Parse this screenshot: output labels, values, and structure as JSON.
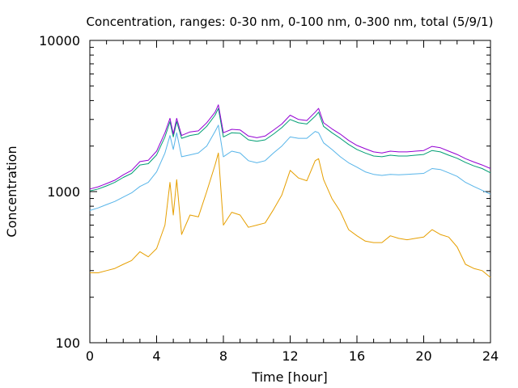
{
  "chart_data": {
    "type": "line",
    "title": "Concentration, ranges: 0-30 nm, 0-100 nm, 0-300 nm, total (5/9/1)",
    "xlabel": "Time [hour]",
    "ylabel": "Concentration",
    "xlim": [
      0,
      24
    ],
    "ylim": [
      100,
      10000
    ],
    "yscale": "log",
    "grid": false,
    "x_ticks": [
      "0",
      "4",
      "8",
      "12",
      "16",
      "20",
      "24"
    ],
    "x_tick_values": [
      0,
      4,
      8,
      12,
      16,
      20,
      24
    ],
    "y_ticks": [
      "100",
      "1000",
      "10000"
    ],
    "y_tick_values": [
      100,
      1000,
      10000
    ],
    "x": [
      0,
      0.5,
      1,
      1.5,
      2,
      2.5,
      3,
      3.5,
      4,
      4.5,
      4.8,
      5,
      5.2,
      5.5,
      6,
      6.5,
      7,
      7.5,
      7.7,
      8,
      8.5,
      9,
      9.5,
      10,
      10.5,
      11,
      11.5,
      12,
      12.5,
      13,
      13.5,
      13.7,
      14,
      14.5,
      15,
      15.5,
      16,
      16.5,
      17,
      17.5,
      18,
      18.5,
      19,
      19.5,
      20,
      20.5,
      21,
      21.5,
      22,
      22.5,
      23,
      23.5,
      24
    ],
    "series": [
      {
        "color": "#e69f00",
        "values": [
          290,
          290,
          300,
          310,
          330,
          350,
          400,
          370,
          420,
          600,
          1150,
          700,
          1200,
          520,
          700,
          680,
          1000,
          1500,
          1800,
          600,
          730,
          700,
          580,
          600,
          620,
          760,
          950,
          1380,
          1230,
          1180,
          1600,
          1650,
          1200,
          900,
          740,
          560,
          510,
          470,
          460,
          460,
          510,
          490,
          480,
          490,
          500,
          560,
          520,
          500,
          430,
          330,
          310,
          300,
          270
        ]
      },
      {
        "color": "#56b4e9",
        "values": [
          750,
          780,
          820,
          860,
          920,
          980,
          1080,
          1150,
          1350,
          1800,
          2350,
          1900,
          2450,
          1700,
          1750,
          1800,
          2000,
          2500,
          2750,
          1700,
          1850,
          1800,
          1600,
          1550,
          1600,
          1800,
          2000,
          2300,
          2250,
          2250,
          2500,
          2450,
          2100,
          1900,
          1700,
          1550,
          1450,
          1350,
          1300,
          1280,
          1300,
          1290,
          1300,
          1310,
          1320,
          1420,
          1400,
          1330,
          1260,
          1150,
          1080,
          1020,
          960
        ]
      },
      {
        "color": "#009e73",
        "values": [
          1010,
          1040,
          1090,
          1150,
          1240,
          1320,
          1500,
          1530,
          1750,
          2300,
          2900,
          2300,
          2900,
          2250,
          2350,
          2400,
          2700,
          3200,
          3550,
          2300,
          2450,
          2430,
          2200,
          2150,
          2200,
          2400,
          2650,
          3000,
          2850,
          2800,
          3150,
          3350,
          2700,
          2450,
          2250,
          2050,
          1900,
          1800,
          1720,
          1700,
          1740,
          1720,
          1720,
          1740,
          1760,
          1870,
          1830,
          1740,
          1660,
          1560,
          1480,
          1420,
          1330
        ]
      },
      {
        "color": "#9400d3",
        "values": [
          1040,
          1075,
          1130,
          1190,
          1290,
          1380,
          1580,
          1610,
          1850,
          2450,
          3050,
          2400,
          3050,
          2350,
          2480,
          2520,
          2850,
          3350,
          3750,
          2450,
          2580,
          2560,
          2330,
          2270,
          2330,
          2550,
          2800,
          3200,
          3000,
          2950,
          3350,
          3550,
          2850,
          2600,
          2400,
          2180,
          2020,
          1920,
          1830,
          1800,
          1850,
          1830,
          1830,
          1850,
          1870,
          1990,
          1950,
          1850,
          1760,
          1650,
          1570,
          1500,
          1420
        ]
      }
    ]
  }
}
